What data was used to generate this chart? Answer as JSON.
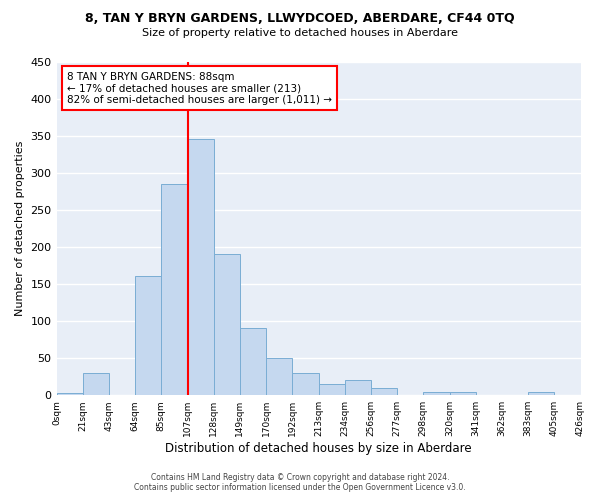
{
  "title": "8, TAN Y BRYN GARDENS, LLWYDCOED, ABERDARE, CF44 0TQ",
  "subtitle": "Size of property relative to detached houses in Aberdare",
  "xlabel": "Distribution of detached houses by size in Aberdare",
  "ylabel": "Number of detached properties",
  "bin_labels": [
    "0sqm",
    "21sqm",
    "43sqm",
    "64sqm",
    "85sqm",
    "107sqm",
    "128sqm",
    "149sqm",
    "170sqm",
    "192sqm",
    "213sqm",
    "234sqm",
    "256sqm",
    "277sqm",
    "298sqm",
    "320sqm",
    "341sqm",
    "362sqm",
    "383sqm",
    "405sqm",
    "426sqm"
  ],
  "bar_heights": [
    3,
    30,
    0,
    161,
    285,
    345,
    191,
    90,
    50,
    30,
    15,
    20,
    10,
    0,
    5,
    5,
    0,
    0,
    5,
    0,
    4
  ],
  "bar_color": "#c5d8ef",
  "bar_edge_color": "#7aadd4",
  "vline_color": "red",
  "ylim": [
    0,
    450
  ],
  "yticks": [
    0,
    50,
    100,
    150,
    200,
    250,
    300,
    350,
    400,
    450
  ],
  "annotation_title": "8 TAN Y BRYN GARDENS: 88sqm",
  "annotation_line1": "← 17% of detached houses are smaller (213)",
  "annotation_line2": "82% of semi-detached houses are larger (1,011) →",
  "annotation_box_color": "white",
  "annotation_box_edge": "red",
  "footer1": "Contains HM Land Registry data © Crown copyright and database right 2024.",
  "footer2": "Contains public sector information licensed under the Open Government Licence v3.0.",
  "fig_bg_color": "#ffffff",
  "plot_bg_color": "#e8eef7",
  "grid_color": "#ffffff"
}
